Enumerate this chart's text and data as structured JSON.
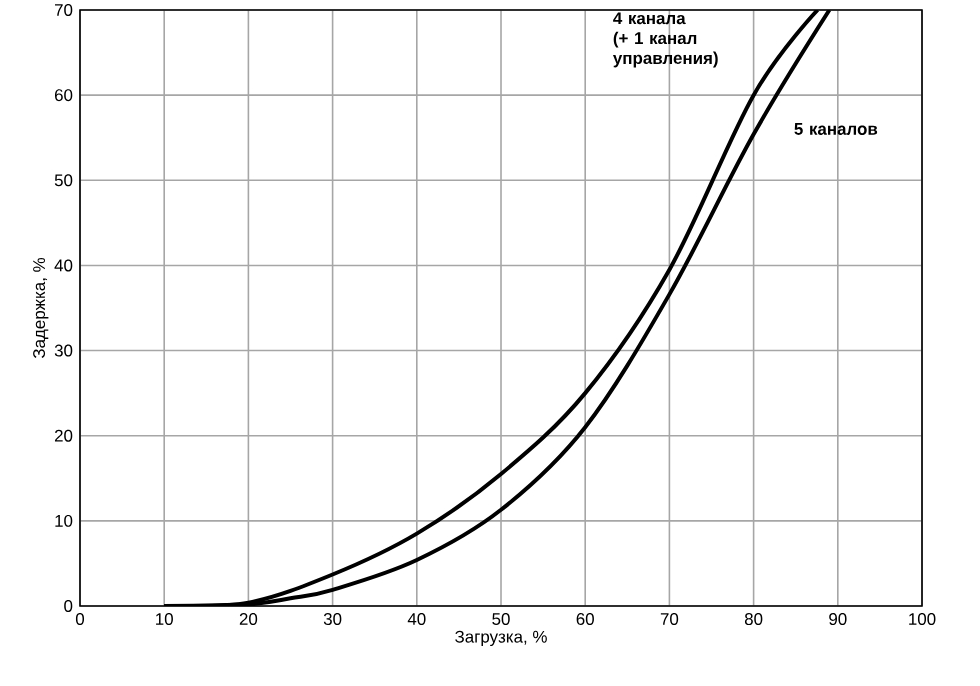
{
  "chart_data": {
    "type": "line",
    "xlabel": "Загрузка, %",
    "ylabel": "Задержка, %",
    "xlim": [
      0,
      100
    ],
    "ylim": [
      0,
      70
    ],
    "xticks": [
      0,
      10,
      20,
      30,
      40,
      50,
      60,
      70,
      80,
      90,
      100
    ],
    "yticks": [
      0,
      10,
      20,
      30,
      40,
      50,
      60,
      70
    ],
    "grid": true,
    "marker": "none",
    "line_style": "solid",
    "series": [
      {
        "name": "4 канала (+ 1 канал управления)",
        "color": "#000000",
        "x": [
          10,
          20,
          30,
          40,
          50,
          60,
          70,
          80,
          87.6
        ],
        "values": [
          0,
          0.4,
          3.7,
          8.5,
          15.5,
          25,
          39.5,
          60,
          70
        ]
      },
      {
        "name": "5 каналов",
        "color": "#000000",
        "x": [
          10,
          20,
          25,
          30,
          40,
          50,
          60,
          70,
          80,
          89
        ],
        "values": [
          0,
          0.2,
          0.9,
          1.9,
          5.4,
          11.3,
          21,
          36.6,
          55.4,
          70
        ]
      }
    ]
  }
}
